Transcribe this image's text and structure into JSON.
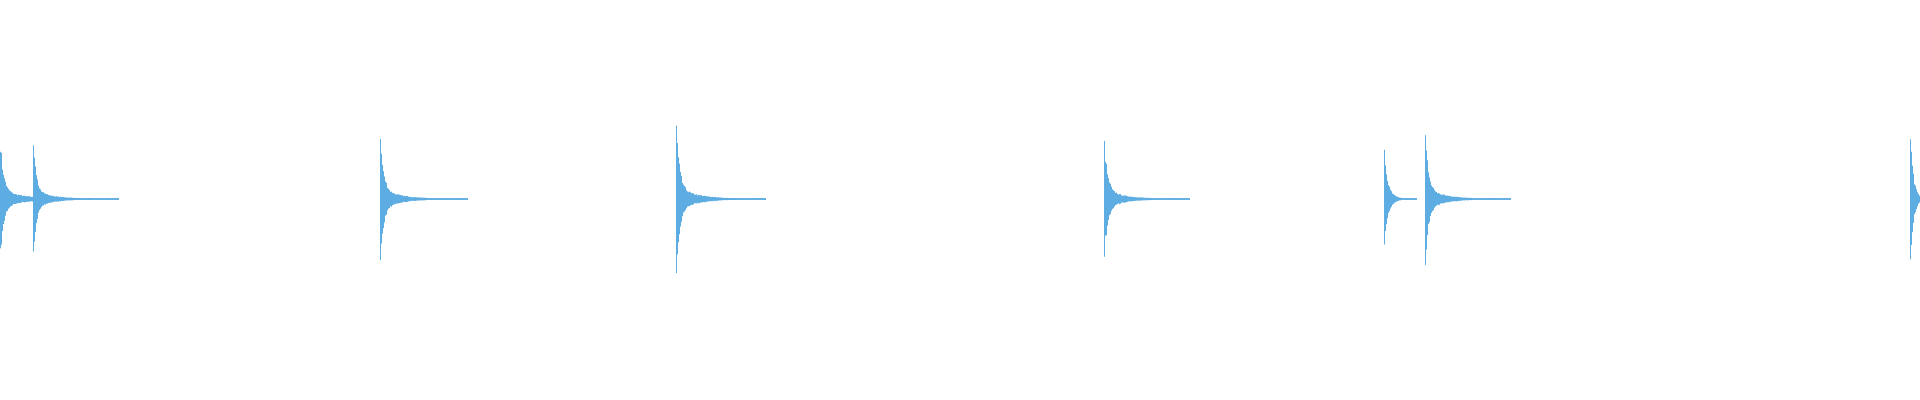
{
  "chart_data": {
    "type": "waveform",
    "color": "#5DADE2",
    "background": "#FFFFFF",
    "axes": "none",
    "grid": false,
    "legend": "none",
    "time_range": [
      0,
      1
    ],
    "amplitude_range": [
      -1,
      1
    ],
    "events": [
      {
        "onset": 0.0,
        "peak": 0.32,
        "decay": 0.05
      },
      {
        "onset": 0.017,
        "peak": 0.29,
        "decay": 0.045
      },
      {
        "onset": 0.198,
        "peak": 0.35,
        "decay": 0.046
      },
      {
        "onset": 0.352,
        "peak": 0.4,
        "decay": 0.047
      },
      {
        "onset": 0.575,
        "peak": 0.32,
        "decay": 0.045
      },
      {
        "onset": 0.721,
        "peak": 0.26,
        "decay": 0.017
      },
      {
        "onset": 0.742,
        "peak": 0.35,
        "decay": 0.045
      },
      {
        "onset": 0.995,
        "peak": 0.36,
        "decay": 0.005
      }
    ]
  }
}
